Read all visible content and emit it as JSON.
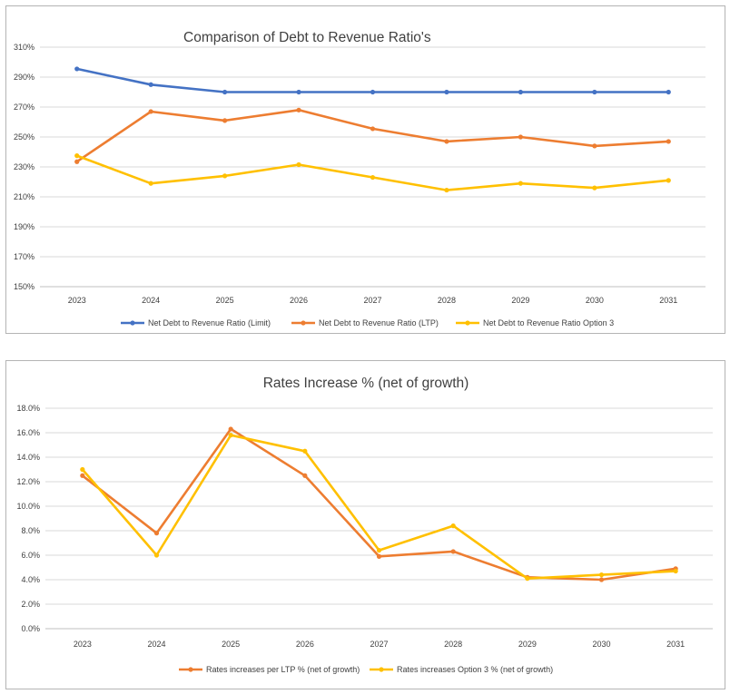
{
  "chart_data": [
    {
      "type": "line",
      "title": "Comparison of Debt to Revenue Ratio's",
      "xlabel": "",
      "ylabel": "",
      "categories": [
        "2023",
        "2024",
        "2025",
        "2026",
        "2027",
        "2028",
        "2029",
        "2030",
        "2031"
      ],
      "ylim": [
        150,
        310
      ],
      "yticks": [
        "310%",
        "290%",
        "270%",
        "250%",
        "230%",
        "210%",
        "190%",
        "170%",
        "150%"
      ],
      "ytick_values": [
        310,
        290,
        270,
        250,
        230,
        210,
        190,
        170,
        150
      ],
      "grid": true,
      "legend": "bottom",
      "series": [
        {
          "name": "Net Debt to Revenue Ratio (Limit)",
          "color": "#4472c4",
          "values": [
            295.5,
            285,
            280,
            280,
            280,
            280,
            280,
            280,
            280
          ]
        },
        {
          "name": "Net Debt to Revenue Ratio (LTP)",
          "color": "#ed7d31",
          "values": [
            233.5,
            267,
            261,
            268,
            255.5,
            247,
            250,
            244,
            247
          ]
        },
        {
          "name": "Net Debt to Revenue Ratio Option 3",
          "color": "#ffc000",
          "values": [
            237.5,
            219,
            224,
            231.5,
            223,
            214.5,
            219,
            216,
            221
          ]
        }
      ]
    },
    {
      "type": "line",
      "title": "Rates Increase % (net of growth)",
      "xlabel": "",
      "ylabel": "",
      "categories": [
        "2023",
        "2024",
        "2025",
        "2026",
        "2027",
        "2028",
        "2029",
        "2030",
        "2031"
      ],
      "ylim": [
        0,
        18
      ],
      "yticks": [
        "18.0%",
        "16.0%",
        "14.0%",
        "12.0%",
        "10.0%",
        "8.0%",
        "6.0%",
        "4.0%",
        "2.0%",
        "0.0%"
      ],
      "ytick_values": [
        18,
        16,
        14,
        12,
        10,
        8,
        6,
        4,
        2,
        0
      ],
      "grid": true,
      "legend": "bottom",
      "series": [
        {
          "name": "Rates increases per LTP % (net of growth)",
          "color": "#ed7d31",
          "values": [
            12.5,
            7.8,
            16.3,
            12.5,
            5.9,
            6.3,
            4.2,
            4.0,
            4.9
          ]
        },
        {
          "name": "Rates increases Option 3 % (net of growth)",
          "color": "#ffc000",
          "values": [
            13.0,
            6.0,
            15.8,
            14.5,
            6.4,
            8.4,
            4.1,
            4.4,
            4.7
          ]
        }
      ]
    }
  ]
}
